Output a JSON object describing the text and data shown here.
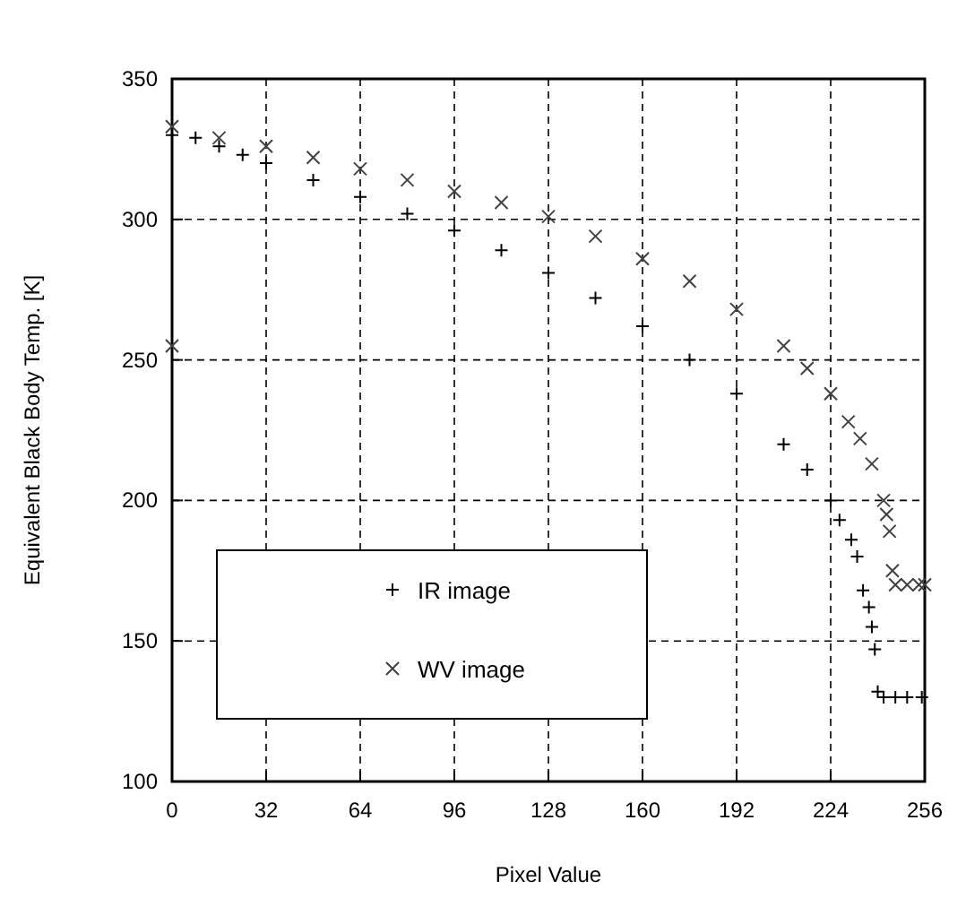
{
  "chart_data": {
    "type": "scatter",
    "xlabel": "Pixel Value",
    "ylabel": "Equivalent Black Body Temp. [K]",
    "xlim": [
      0,
      256
    ],
    "xticks": [
      0,
      32,
      64,
      96,
      128,
      160,
      192,
      224,
      256
    ],
    "ylim": [
      100,
      350
    ],
    "yticks": [
      100,
      150,
      200,
      250,
      300,
      350
    ],
    "grid": true,
    "legend": "bottom left",
    "series": [
      {
        "name": "IR image",
        "color": "#000000",
        "marker": "plus",
        "x": [
          0,
          8,
          16,
          24,
          32,
          48,
          64,
          80,
          96,
          112,
          128,
          144,
          160,
          176,
          192,
          208,
          216,
          224,
          227,
          231,
          233,
          235,
          237,
          238,
          239,
          240,
          242,
          246,
          250,
          255
        ],
        "values": [
          330,
          329,
          326,
          323,
          320,
          314,
          308,
          302,
          296,
          289,
          281,
          272,
          262,
          250,
          238,
          220,
          211,
          200,
          193,
          186,
          180,
          168,
          162,
          155,
          147,
          132,
          130,
          130,
          130,
          130
        ]
      },
      {
        "name": "WV image",
        "color": "#404040",
        "marker": "cross",
        "x": [
          0,
          0,
          16,
          32,
          48,
          64,
          80,
          96,
          112,
          128,
          144,
          160,
          176,
          192,
          208,
          216,
          224,
          230,
          234,
          238,
          242,
          243,
          244,
          245,
          246,
          250,
          254,
          256
        ],
        "values": [
          255,
          333,
          329,
          326,
          322,
          318,
          314,
          310,
          306,
          301,
          294,
          286,
          278,
          268,
          255,
          247,
          238,
          228,
          222,
          213,
          200,
          195,
          189,
          175,
          170,
          170,
          170,
          170
        ]
      }
    ]
  }
}
